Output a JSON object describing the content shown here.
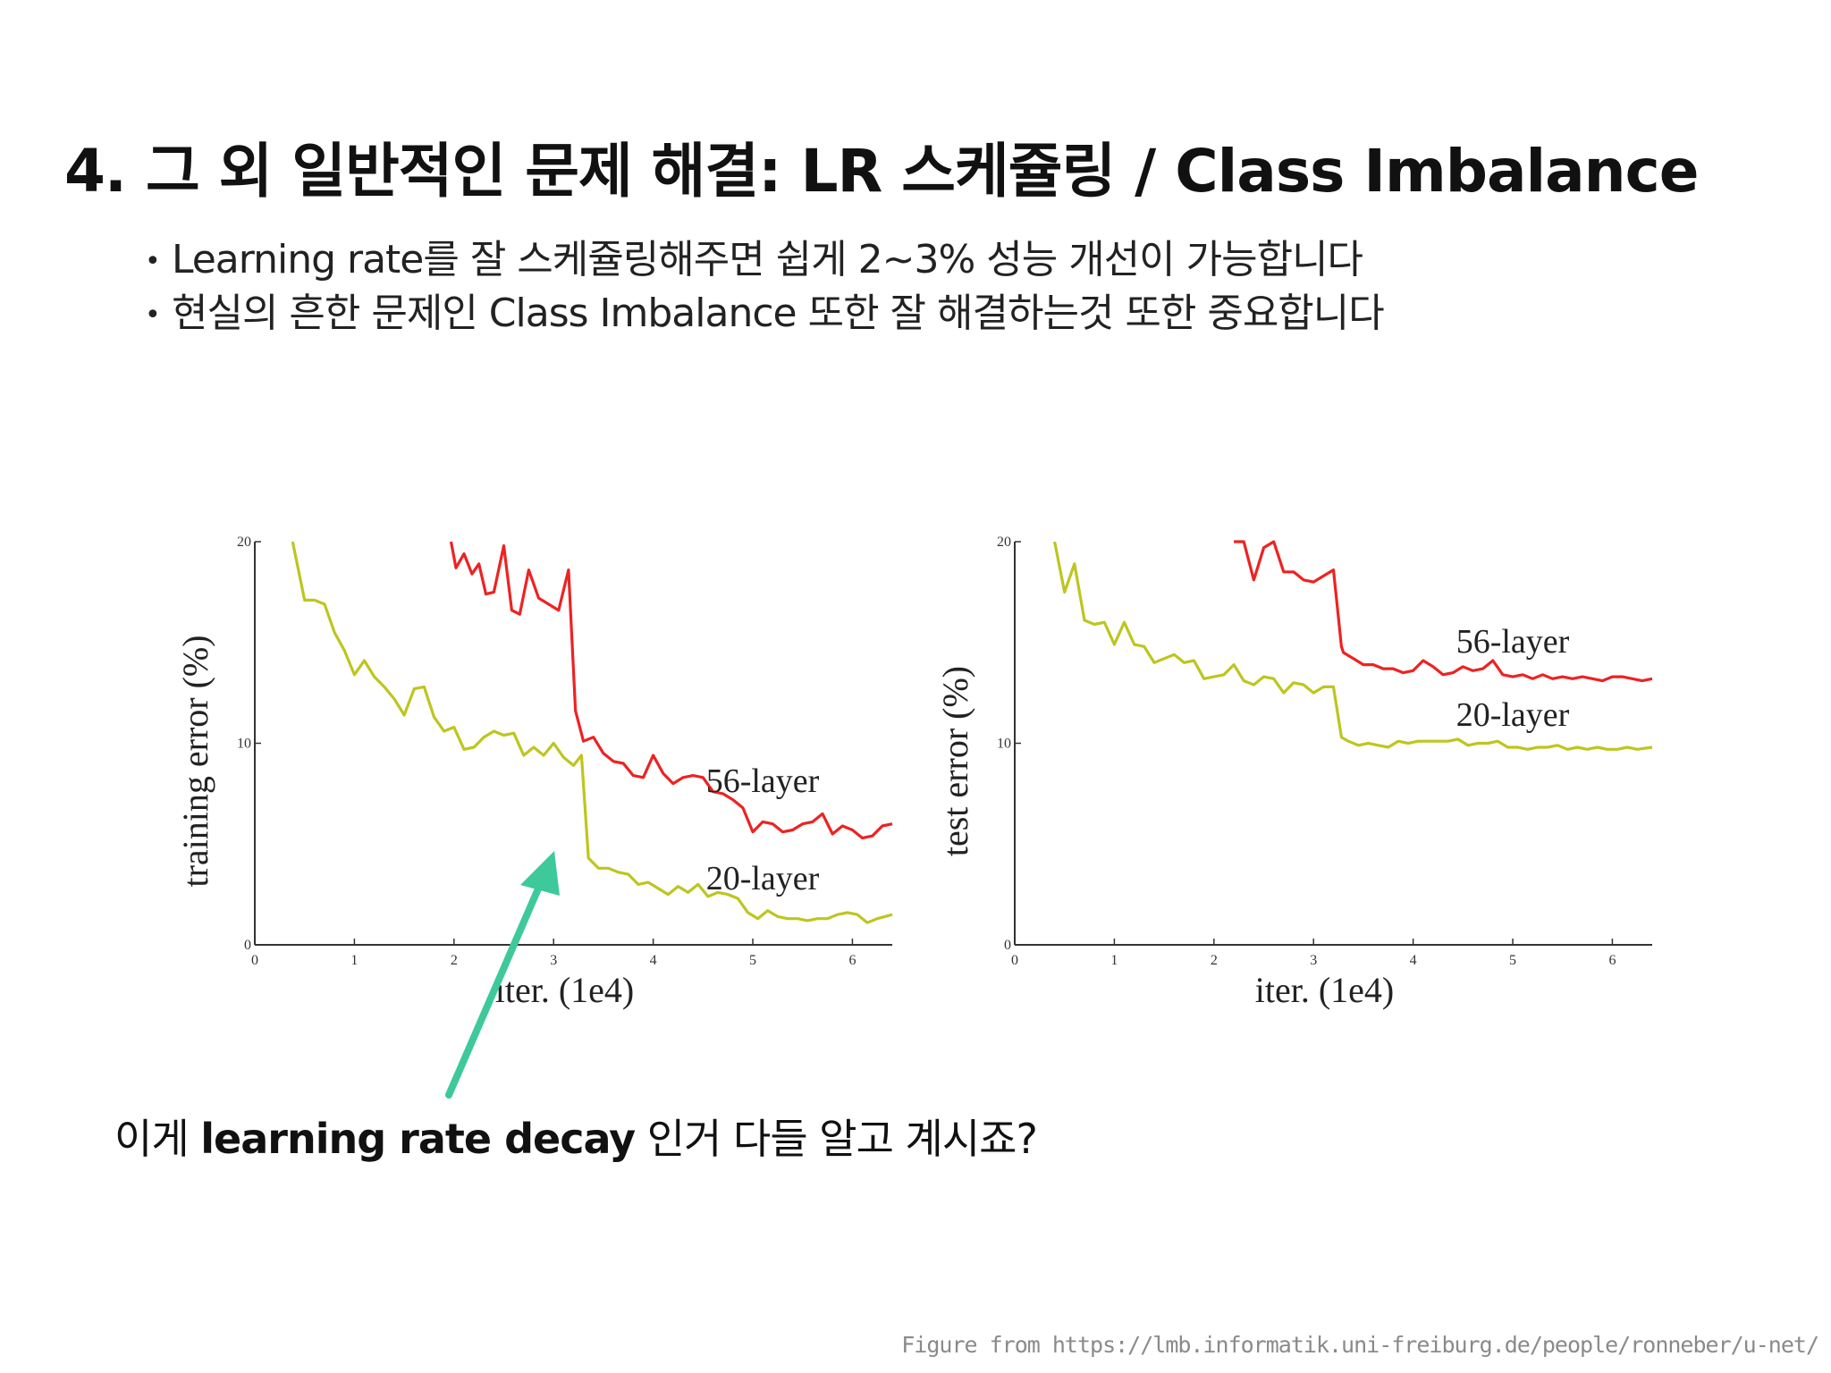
{
  "slide": {
    "title": "4. 그 외 일반적인 문제 해결: LR 스케쥴링 / Class Imbalance",
    "bullets": [
      "Learning rate를 잘 스케쥴링해주면 쉽게 2~3% 성능 개선이 가능합니다",
      "현실의 흔한 문제인 Class Imbalance 또한 잘 해결하는것 또한 중요합니다"
    ],
    "caption_prefix": "이게 ",
    "caption_bold": "learning rate decay",
    "caption_suffix": " 인거 다들 알고 계시죠?",
    "footer": "Figure from https://lmb.informatik.uni-freiburg.de/people/ronneber/u-net/",
    "arrow_color": "#3ec99a"
  },
  "chart_data": [
    {
      "type": "line",
      "ylabel": "training error (%)",
      "xlabel": "iter. (1e4)",
      "xlim": [
        0,
        6.4
      ],
      "ylim": [
        0,
        20
      ],
      "xticks": [
        "0",
        "1",
        "2",
        "3",
        "4",
        "5",
        "6"
      ],
      "yticks": [
        "0",
        "10",
        "20"
      ],
      "series": [
        {
          "name": "56-layer",
          "color": "#ee2222",
          "x": [
            1.97,
            2.02,
            2.1,
            2.18,
            2.25,
            2.32,
            2.4,
            2.5,
            2.58,
            2.66,
            2.75,
            2.85,
            2.95,
            3.05,
            3.15,
            3.22,
            3.3,
            3.4,
            3.5,
            3.6,
            3.7,
            3.8,
            3.9,
            4.0,
            4.1,
            4.2,
            4.3,
            4.4,
            4.5,
            4.6,
            4.7,
            4.8,
            4.9,
            5.0,
            5.1,
            5.2,
            5.3,
            5.4,
            5.5,
            5.6,
            5.7,
            5.8,
            5.9,
            6.0,
            6.1,
            6.2,
            6.3,
            6.4
          ],
          "y": [
            20,
            18.7,
            19.4,
            18.4,
            18.9,
            17.4,
            17.5,
            19.8,
            16.6,
            16.4,
            18.6,
            17.2,
            16.9,
            16.6,
            18.6,
            11.6,
            10.1,
            10.3,
            9.5,
            9.1,
            9.0,
            8.4,
            8.3,
            9.4,
            8.5,
            8.0,
            8.3,
            8.4,
            8.3,
            7.6,
            7.5,
            7.2,
            6.8,
            5.6,
            6.1,
            6.0,
            5.6,
            5.7,
            6.0,
            6.1,
            6.5,
            5.5,
            5.9,
            5.7,
            5.3,
            5.4,
            5.9,
            6.0
          ]
        },
        {
          "name": "20-layer",
          "color": "#bdc61e",
          "x": [
            0.38,
            0.5,
            0.6,
            0.7,
            0.8,
            0.9,
            1.0,
            1.1,
            1.2,
            1.3,
            1.4,
            1.5,
            1.6,
            1.7,
            1.8,
            1.9,
            2.0,
            2.1,
            2.2,
            2.3,
            2.4,
            2.5,
            2.6,
            2.7,
            2.8,
            2.9,
            3.0,
            3.1,
            3.2,
            3.28,
            3.35,
            3.45,
            3.55,
            3.65,
            3.75,
            3.85,
            3.95,
            4.05,
            4.15,
            4.25,
            4.35,
            4.45,
            4.55,
            4.65,
            4.75,
            4.85,
            4.95,
            5.05,
            5.15,
            5.25,
            5.35,
            5.45,
            5.55,
            5.65,
            5.75,
            5.85,
            5.95,
            6.05,
            6.15,
            6.25,
            6.4
          ],
          "y": [
            20,
            17.1,
            17.1,
            16.9,
            15.5,
            14.6,
            13.4,
            14.1,
            13.3,
            12.8,
            12.2,
            11.4,
            12.7,
            12.8,
            11.3,
            10.6,
            10.8,
            9.7,
            9.8,
            10.3,
            10.6,
            10.4,
            10.5,
            9.4,
            9.8,
            9.4,
            10.0,
            9.3,
            8.9,
            9.4,
            4.3,
            3.8,
            3.8,
            3.6,
            3.5,
            3.0,
            3.1,
            2.8,
            2.5,
            2.9,
            2.6,
            3.0,
            2.4,
            2.6,
            2.5,
            2.3,
            1.6,
            1.3,
            1.7,
            1.4,
            1.3,
            1.3,
            1.2,
            1.3,
            1.3,
            1.5,
            1.6,
            1.5,
            1.1,
            1.3,
            1.5
          ]
        }
      ]
    },
    {
      "type": "line",
      "ylabel": "test error (%)",
      "xlabel": "iter. (1e4)",
      "xlim": [
        0,
        6.4
      ],
      "ylim": [
        0,
        20
      ],
      "xticks": [
        "0",
        "1",
        "2",
        "3",
        "4",
        "5",
        "6"
      ],
      "yticks": [
        "0",
        "10",
        "20"
      ],
      "series": [
        {
          "name": "56-layer",
          "color": "#ee2222",
          "x": [
            2.2,
            2.3,
            2.4,
            2.5,
            2.6,
            2.7,
            2.8,
            2.9,
            3.0,
            3.1,
            3.2,
            3.28,
            3.3,
            3.4,
            3.5,
            3.6,
            3.7,
            3.8,
            3.9,
            4.0,
            4.1,
            4.2,
            4.3,
            4.4,
            4.5,
            4.6,
            4.7,
            4.8,
            4.9,
            5.0,
            5.1,
            5.2,
            5.3,
            5.4,
            5.5,
            5.6,
            5.7,
            5.8,
            5.9,
            6.0,
            6.1,
            6.2,
            6.3,
            6.4
          ],
          "y": [
            20,
            20,
            18.1,
            19.7,
            20,
            18.5,
            18.5,
            18.1,
            18.0,
            18.3,
            18.6,
            14.8,
            14.5,
            14.2,
            13.9,
            13.9,
            13.7,
            13.7,
            13.5,
            13.6,
            14.1,
            13.8,
            13.4,
            13.5,
            13.8,
            13.6,
            13.7,
            14.1,
            13.4,
            13.3,
            13.4,
            13.2,
            13.4,
            13.2,
            13.3,
            13.2,
            13.3,
            13.2,
            13.1,
            13.3,
            13.3,
            13.2,
            13.1,
            13.2
          ]
        },
        {
          "name": "20-layer",
          "color": "#bdc61e",
          "x": [
            0.4,
            0.5,
            0.6,
            0.7,
            0.8,
            0.9,
            1.0,
            1.1,
            1.2,
            1.3,
            1.4,
            1.5,
            1.6,
            1.7,
            1.8,
            1.9,
            2.0,
            2.1,
            2.2,
            2.3,
            2.4,
            2.5,
            2.6,
            2.7,
            2.8,
            2.9,
            3.0,
            3.1,
            3.2,
            3.28,
            3.35,
            3.45,
            3.55,
            3.65,
            3.75,
            3.85,
            3.95,
            4.05,
            4.15,
            4.25,
            4.35,
            4.45,
            4.55,
            4.65,
            4.75,
            4.85,
            4.95,
            5.05,
            5.15,
            5.25,
            5.35,
            5.45,
            5.55,
            5.65,
            5.75,
            5.85,
            5.95,
            6.05,
            6.15,
            6.25,
            6.4
          ],
          "y": [
            20,
            17.5,
            18.9,
            16.1,
            15.9,
            16.0,
            14.9,
            16.0,
            14.9,
            14.8,
            14.0,
            14.2,
            14.4,
            14.0,
            14.1,
            13.2,
            13.3,
            13.4,
            13.9,
            13.1,
            12.9,
            13.3,
            13.2,
            12.5,
            13.0,
            12.9,
            12.5,
            12.8,
            12.8,
            10.3,
            10.1,
            9.9,
            10.0,
            9.9,
            9.8,
            10.1,
            10.0,
            10.1,
            10.1,
            10.1,
            10.1,
            10.2,
            9.9,
            10.0,
            10.0,
            10.1,
            9.8,
            9.8,
            9.7,
            9.8,
            9.8,
            9.9,
            9.7,
            9.8,
            9.7,
            9.8,
            9.7,
            9.7,
            9.8,
            9.7,
            9.8
          ]
        }
      ]
    }
  ]
}
